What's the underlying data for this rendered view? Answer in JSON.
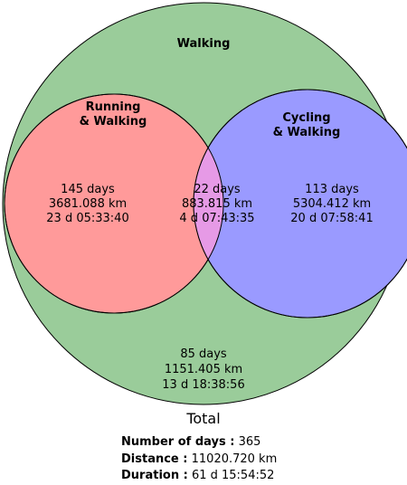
{
  "sets": {
    "walking": {
      "label": "Walking",
      "color": "#9acc9a",
      "only": {
        "days": "85 days",
        "distance": "1151.405 km",
        "duration": "13 d 18:38:56"
      }
    },
    "running": {
      "label_line1": "Running",
      "label_line2": "& Walking",
      "color": "#ff9a9a",
      "only": {
        "days": "145 days",
        "distance": "3681.088 km",
        "duration": "23 d 05:33:40"
      }
    },
    "cycling": {
      "label_line1": "Cycling",
      "label_line2": "& Walking",
      "color": "#9a9aff",
      "only": {
        "days": "113 days",
        "distance": "5304.412 km",
        "duration": "20 d 07:58:41"
      }
    },
    "overlap": {
      "color": "#e69ae6",
      "days": "22 days",
      "distance": "883.815 km",
      "duration": "4 d 07:43:35"
    }
  },
  "total": {
    "title": "Total",
    "days_label": "Number of days :",
    "days_value": "365",
    "distance_label": "Distance :",
    "distance_value": "11020.720 km",
    "duration_label": "Duration :",
    "duration_value": "61 d 15:54:52"
  }
}
